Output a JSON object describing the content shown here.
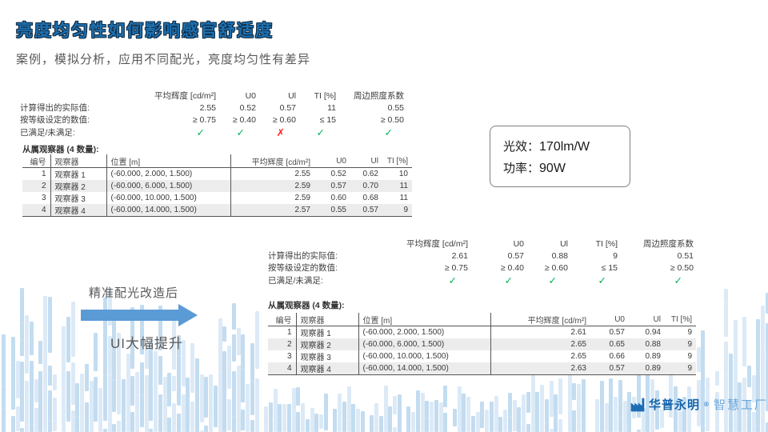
{
  "slide": {
    "title": "亮度均匀性如何影响感官舒适度",
    "subtitle": "案例，模拟分析，应用不同配光，亮度均匀性有差异"
  },
  "colors": {
    "accent_blue": "#5b9bd5",
    "background_bar_blue": "#c9dff0",
    "check_green": "#00b050",
    "cross_red": "#ff1f1f",
    "logo_blue": "#1565ad",
    "logo_light_blue": "#6aa7db",
    "title_blue": "#1d70b0"
  },
  "block1": {
    "summary": {
      "rows": [
        [
          "",
          "平均辉度  [cd/m²]",
          "U0",
          "Ul",
          "TI [%]",
          "周边照度系数"
        ],
        [
          "计算得出的实际值:",
          "2.55",
          "0.52",
          "0.57",
          "11",
          "0.55"
        ],
        [
          "按等级设定的数值:",
          "≥ 0.75",
          "≥ 0.40",
          "≥ 0.60",
          "≤ 15",
          "≥ 0.50"
        ],
        [
          "已满足/未满足:",
          "✓",
          "✓",
          "✗",
          "✓",
          "✓"
        ]
      ]
    },
    "observer_title": "从属观察器  (4 数量):",
    "observers": {
      "headers": [
        "编号",
        "观察器",
        "位置  [m]",
        "平均辉度  [cd/m²]",
        "U0",
        "Ul",
        "TI [%]"
      ],
      "rows": [
        [
          "1",
          "观察器  1",
          "(-60.000, 2.000, 1.500)",
          "2.55",
          "0.52",
          "0.62",
          "10"
        ],
        [
          "2",
          "观察器  2",
          "(-60.000, 6.000, 1.500)",
          "2.59",
          "0.57",
          "0.70",
          "11"
        ],
        [
          "3",
          "观察器  3",
          "(-60.000, 10.000, 1.500)",
          "2.59",
          "0.60",
          "0.68",
          "11"
        ],
        [
          "4",
          "观察器  4",
          "(-60.000, 14.000, 1.500)",
          "2.57",
          "0.55",
          "0.57",
          "9"
        ]
      ]
    }
  },
  "block2": {
    "summary": {
      "rows": [
        [
          "",
          "平均辉度  [cd/m²]",
          "U0",
          "Ul",
          "TI [%]",
          "周边照度系数"
        ],
        [
          "计算得出的实际值:",
          "2.61",
          "0.57",
          "0.88",
          "9",
          "0.51"
        ],
        [
          "按等级设定的数值:",
          "≥ 0.75",
          "≥ 0.40",
          "≥ 0.60",
          "≤ 15",
          "≥ 0.50"
        ],
        [
          "已满足/未满足:",
          "✓",
          "✓",
          "✓",
          "✓",
          "✓"
        ]
      ]
    },
    "observer_title": "从属观察器  (4 数量):",
    "observers": {
      "headers": [
        "编号",
        "观察器",
        "位置  [m]",
        "平均辉度  [cd/m²]",
        "U0",
        "Ul",
        "TI [%]"
      ],
      "rows": [
        [
          "1",
          "观察器  1",
          "(-60.000, 2.000, 1.500)",
          "2.61",
          "0.57",
          "0.94",
          "9"
        ],
        [
          "2",
          "观察器  2",
          "(-60.000, 6.000, 1.500)",
          "2.65",
          "0.65",
          "0.88",
          "9"
        ],
        [
          "3",
          "观察器  3",
          "(-60.000, 10.000, 1.500)",
          "2.65",
          "0.66",
          "0.89",
          "9"
        ],
        [
          "4",
          "观察器  4",
          "(-60.000, 14.000, 1.500)",
          "2.63",
          "0.57",
          "0.89",
          "9"
        ]
      ]
    }
  },
  "callout": {
    "efficacy_label": "光效：",
    "efficacy_value": "170lm/W",
    "power_label": "功率：",
    "power_value": "90W"
  },
  "transition": {
    "label_top": "精准配光改造后",
    "label_bottom": "UI大幅提升"
  },
  "logo": {
    "brand": "华普永明",
    "reg": "®",
    "suffix": "智慧工厂"
  }
}
